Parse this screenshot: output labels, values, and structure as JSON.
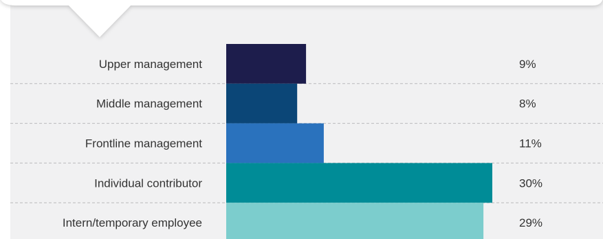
{
  "chart_data": {
    "type": "bar",
    "orientation": "horizontal",
    "categories": [
      "Upper management",
      "Middle management",
      "Frontline management",
      "Individual contributor",
      "Intern/temporary employee"
    ],
    "values": [
      9,
      8,
      11,
      30,
      29
    ],
    "value_labels": [
      "9%",
      "8%",
      "11%",
      "30%",
      "29%"
    ],
    "bar_colors": [
      "#1d1d4c",
      "#0b4677",
      "#2a72bd",
      "#008c97",
      "#7ccdcd"
    ],
    "grid": "dashed separators between rows",
    "legend": "none"
  },
  "colors": {
    "panel_background": "#f1f1f2",
    "callout_background": "#ffffff",
    "separator": "#b9b9bb",
    "text": "#333333"
  }
}
